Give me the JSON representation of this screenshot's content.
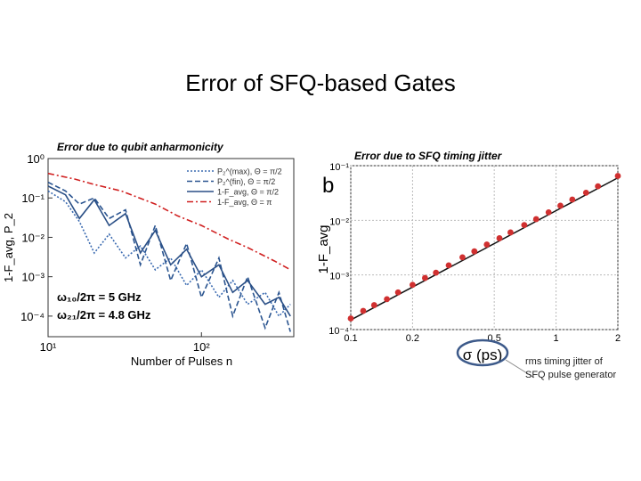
{
  "slide": {
    "title": "Error of SFQ-based Gates",
    "left_caption": "Error due to qubit anharmonicity",
    "right_caption": "Error due to SFQ timing jitter",
    "note_line1": "rms timing jitter of",
    "note_line2": "SFQ pulse generator",
    "highlight_color": "#3d5a8a"
  },
  "chart_data": [
    {
      "type": "line",
      "title": "",
      "xlabel": "Number of Pulses n",
      "ylabel": "1-F_avg, P_2",
      "xscale": "log",
      "yscale": "log",
      "xlim": [
        10,
        400
      ],
      "ylim": [
        3e-05,
        1
      ],
      "x_ticks": [
        "10¹",
        "10²"
      ],
      "y_ticks": [
        "10⁰",
        "10⁻¹",
        "10⁻²",
        "10⁻³",
        "10⁻⁴"
      ],
      "legend_position": "top-right",
      "legend": [
        "P₂^(max), Θ = π/2",
        "P₂^(fin), Θ = π/2",
        "1-F_avg, Θ = π/2",
        "1-F_avg, Θ = π"
      ],
      "annotations": [
        "ω₁₀/2π = 5 GHz",
        "ω₂₁/2π = 4.8 GHz"
      ],
      "colors": [
        "#3a6ab0",
        "#2b5590",
        "#2a4f86",
        "#d02020"
      ],
      "series": [
        {
          "name": "1-F_avg, Θ = π",
          "style": "dash-dot",
          "x": [
            10,
            15,
            20,
            30,
            50,
            70,
            100,
            150,
            200,
            300,
            380
          ],
          "y": [
            0.42,
            0.3,
            0.22,
            0.15,
            0.07,
            0.035,
            0.02,
            0.009,
            0.0055,
            0.0025,
            0.0015
          ]
        },
        {
          "name": "P₂^(max), Θ = π/2",
          "style": "dotted",
          "x": [
            10,
            13,
            16,
            20,
            25,
            32,
            40,
            50,
            63,
            80,
            100,
            130,
            160,
            200,
            260,
            320,
            380
          ],
          "y": [
            0.15,
            0.08,
            0.025,
            0.004,
            0.012,
            0.003,
            0.006,
            0.0015,
            0.003,
            0.0006,
            0.0015,
            0.0003,
            0.0008,
            0.0002,
            0.0004,
            0.0001,
            0.0002
          ]
        },
        {
          "name": "P₂^(fin), Θ = π/2",
          "style": "dashed",
          "x": [
            10,
            13,
            16,
            20,
            25,
            32,
            40,
            50,
            63,
            80,
            100,
            130,
            160,
            200,
            260,
            320,
            380
          ],
          "y": [
            0.25,
            0.15,
            0.07,
            0.1,
            0.03,
            0.05,
            0.002,
            0.02,
            0.0008,
            0.007,
            0.0003,
            0.003,
            0.0001,
            0.001,
            5e-05,
            0.0004,
            4e-05
          ]
        },
        {
          "name": "1-F_avg, Θ = π/2",
          "style": "solid",
          "x": [
            10,
            13,
            16,
            20,
            25,
            32,
            40,
            50,
            63,
            80,
            100,
            130,
            160,
            200,
            260,
            320,
            380
          ],
          "y": [
            0.2,
            0.12,
            0.03,
            0.09,
            0.02,
            0.04,
            0.004,
            0.015,
            0.002,
            0.005,
            0.001,
            0.002,
            0.0004,
            0.0008,
            0.0002,
            0.0003,
            0.0001
          ]
        }
      ]
    },
    {
      "type": "scatter",
      "title": "",
      "panel_label": "b",
      "xlabel": "σ (ps)",
      "ylabel": "1-F_avg",
      "xscale": "log",
      "yscale": "log",
      "xlim": [
        0.1,
        2
      ],
      "ylim": [
        0.0001,
        0.1
      ],
      "x_ticks": [
        "0.1",
        "0.2",
        "0.5",
        "1",
        "2"
      ],
      "x_tick_values": [
        0.1,
        0.2,
        0.5,
        1,
        2
      ],
      "y_ticks": [
        "10⁻¹",
        "10⁻²",
        "10⁻³",
        "10⁻⁴"
      ],
      "marker_color": "#d03030",
      "fit_line": {
        "x": [
          0.1,
          2
        ],
        "y": [
          0.00015,
          0.06
        ]
      },
      "series": [
        {
          "name": "",
          "x": [
            0.1,
            0.115,
            0.13,
            0.15,
            0.17,
            0.2,
            0.23,
            0.26,
            0.3,
            0.35,
            0.4,
            0.46,
            0.53,
            0.6,
            0.7,
            0.8,
            0.92,
            1.05,
            1.2,
            1.4,
            1.6,
            2.0
          ],
          "y": [
            0.00016,
            0.00022,
            0.00028,
            0.00036,
            0.00048,
            0.00066,
            0.00088,
            0.0011,
            0.0015,
            0.0021,
            0.0027,
            0.0036,
            0.0047,
            0.006,
            0.0082,
            0.0105,
            0.014,
            0.0185,
            0.024,
            0.032,
            0.042,
            0.065
          ]
        }
      ]
    }
  ]
}
